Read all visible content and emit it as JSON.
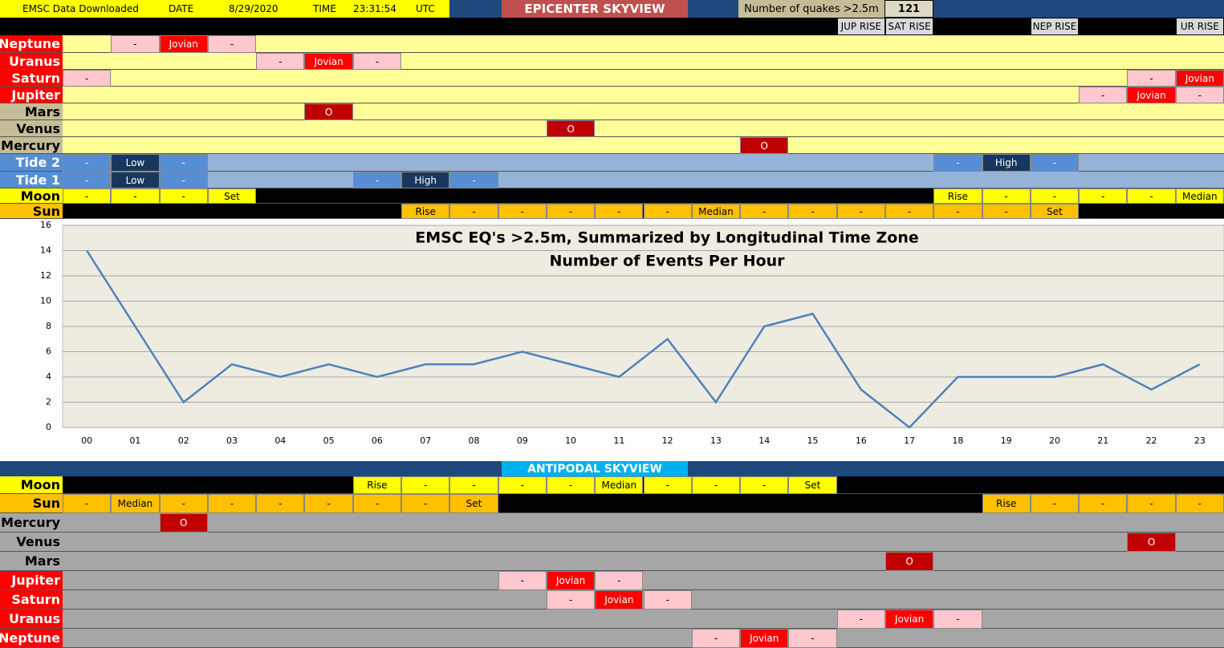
{
  "header": {
    "downloaded": "EMSC Data Downloaded",
    "date_label": "DATE",
    "date": "8/29/2020",
    "time_label": "TIME",
    "time": "23:31:54",
    "tz": "UTC",
    "title": "EPICENTER SKYVIEW",
    "quakes_label": "Number of quakes >2.5m",
    "quakes": 121
  },
  "rise_row": [
    null,
    null,
    null,
    null,
    null,
    null,
    null,
    null,
    null,
    null,
    null,
    null,
    null,
    null,
    null,
    null,
    "JUP RISE",
    "SAT RISE",
    null,
    null,
    "NEP RISE",
    null,
    null,
    "UR RISE"
  ],
  "epicenter": {
    "rows": [
      {
        "label": "Neptune",
        "label_color": "#ff0000",
        "bg": "#ffff99",
        "cells": [
          null,
          [
            "-",
            "#ffc7ce"
          ],
          [
            "Jovian",
            "#ff0000"
          ],
          [
            "-",
            "#ffc7ce"
          ],
          null,
          null,
          null,
          null,
          null,
          null,
          null,
          null,
          null,
          null,
          null,
          null,
          null,
          null,
          null,
          null,
          null,
          null,
          null,
          null
        ]
      },
      {
        "label": "Uranus",
        "label_color": "#ff0000",
        "bg": "#ffff99",
        "cells": [
          null,
          null,
          null,
          null,
          [
            "-",
            "#ffc7ce"
          ],
          [
            "Jovian",
            "#ff0000"
          ],
          [
            "-",
            "#ffc7ce"
          ],
          null,
          null,
          null,
          null,
          null,
          null,
          null,
          null,
          null,
          null,
          null,
          null,
          null,
          null,
          null,
          null,
          null
        ]
      },
      {
        "label": "Saturn",
        "label_color": "#ff0000",
        "bg": "#ffff99",
        "cells": [
          [
            "-",
            "#ffc7ce"
          ],
          null,
          null,
          null,
          null,
          null,
          null,
          null,
          null,
          null,
          null,
          null,
          null,
          null,
          null,
          null,
          null,
          null,
          null,
          null,
          null,
          null,
          [
            "-",
            "#ffc7ce"
          ],
          [
            "Jovian",
            "#ff0000"
          ]
        ]
      },
      {
        "label": "Jupiter",
        "label_color": "#ff0000",
        "bg": "#ffff99",
        "cells": [
          null,
          null,
          null,
          null,
          null,
          null,
          null,
          null,
          null,
          null,
          null,
          null,
          null,
          null,
          null,
          null,
          null,
          null,
          null,
          null,
          null,
          [
            "-",
            "#ffc7ce"
          ],
          [
            "Jovian",
            "#ff0000"
          ],
          [
            "-",
            "#ffc7ce"
          ]
        ]
      },
      {
        "label": "Mars",
        "label_color": "#c4bd97",
        "bg": "#ffff99",
        "cells": [
          null,
          null,
          null,
          null,
          null,
          [
            "O",
            "#c00000"
          ],
          null,
          null,
          null,
          null,
          null,
          null,
          null,
          null,
          null,
          null,
          null,
          null,
          null,
          null,
          null,
          null,
          null,
          null
        ]
      },
      {
        "label": "Venus",
        "label_color": "#c4bd97",
        "bg": "#ffff99",
        "cells": [
          null,
          null,
          null,
          null,
          null,
          null,
          null,
          null,
          null,
          null,
          [
            "O",
            "#c00000"
          ],
          null,
          null,
          null,
          null,
          null,
          null,
          null,
          null,
          null,
          null,
          null,
          null,
          null
        ]
      },
      {
        "label": "Mercury",
        "label_color": "#c4bd97",
        "bg": "#ffff99",
        "cells": [
          null,
          null,
          null,
          null,
          null,
          null,
          null,
          null,
          null,
          null,
          null,
          null,
          null,
          null,
          [
            "O",
            "#c00000"
          ],
          null,
          null,
          null,
          null,
          null,
          null,
          null,
          null,
          null
        ]
      },
      {
        "label": "Tide 2",
        "label_color": "#558ed5",
        "bg": "#95b3d7",
        "cells": [
          [
            "-",
            "#558ed5"
          ],
          [
            "Low",
            "#17375e"
          ],
          [
            "-",
            "#558ed5"
          ],
          null,
          null,
          null,
          null,
          null,
          null,
          null,
          null,
          null,
          null,
          null,
          null,
          null,
          null,
          null,
          [
            "-",
            "#558ed5"
          ],
          [
            "High",
            "#17375e"
          ],
          [
            "-",
            "#558ed5"
          ],
          null,
          null,
          null
        ]
      },
      {
        "label": "Tide 1",
        "label_color": "#558ed5",
        "bg": "#95b3d7",
        "cells": [
          [
            "-",
            "#558ed5"
          ],
          [
            "Low",
            "#17375e"
          ],
          [
            "-",
            "#558ed5"
          ],
          null,
          null,
          null,
          [
            "-",
            "#558ed5"
          ],
          [
            "High",
            "#17375e"
          ],
          [
            "-",
            "#558ed5"
          ],
          null,
          null,
          null,
          null,
          null,
          null,
          null,
          null,
          null,
          null,
          null,
          null,
          null,
          null,
          null
        ]
      },
      {
        "label": "Moon",
        "label_color": "#ffff00",
        "bg": "#000000",
        "cells": [
          [
            "-",
            "#ffff00"
          ],
          [
            "-",
            "#ffff00"
          ],
          [
            "-",
            "#ffff00"
          ],
          [
            "Set",
            "#ffff00"
          ],
          null,
          null,
          null,
          null,
          null,
          null,
          null,
          null,
          null,
          null,
          null,
          null,
          null,
          null,
          [
            "Rise",
            "#ffff00"
          ],
          [
            "-",
            "#ffff00"
          ],
          [
            "-",
            "#ffff00"
          ],
          [
            "-",
            "#ffff00"
          ],
          [
            "-",
            "#ffff00"
          ],
          [
            "Median",
            "#ffff00"
          ]
        ]
      },
      {
        "label": "Sun",
        "label_color": "#ffc000",
        "bg": "#000000",
        "cells": [
          null,
          null,
          null,
          null,
          null,
          null,
          null,
          [
            "Rise",
            "#ffc000"
          ],
          [
            "-",
            "#ffc000"
          ],
          [
            "-",
            "#ffc000"
          ],
          [
            "-",
            "#ffc000"
          ],
          [
            "-",
            "#ffc000"
          ],
          [
            "-",
            "#ffc000"
          ],
          [
            "Median",
            "#ffc000"
          ],
          [
            "-",
            "#ffc000"
          ],
          [
            "-",
            "#ffc000"
          ],
          [
            "-",
            "#ffc000"
          ],
          [
            "-",
            "#ffc000"
          ],
          [
            "-",
            "#ffc000"
          ],
          [
            "-",
            "#ffc000"
          ],
          [
            "Set",
            "#ffc000"
          ],
          null,
          null,
          null
        ]
      }
    ]
  },
  "chart_data": {
    "type": "line",
    "title": "EMSC EQ's >2.5m, Summarized by Longitudinal Time Zone",
    "subtitle": "Number of Events Per Hour",
    "categories": [
      "00",
      "01",
      "02",
      "03",
      "04",
      "05",
      "06",
      "07",
      "08",
      "09",
      "10",
      "11",
      "12",
      "13",
      "14",
      "15",
      "16",
      "17",
      "18",
      "19",
      "20",
      "21",
      "22",
      "23"
    ],
    "values": [
      14,
      8,
      2,
      5,
      4,
      5,
      4,
      5,
      5,
      6,
      5,
      4,
      7,
      2,
      8,
      9,
      3,
      0,
      4,
      4,
      4,
      5,
      3,
      5
    ],
    "color": "#4f81bd",
    "ylim": [
      0,
      16
    ],
    "yticks": [
      0,
      2,
      4,
      6,
      8,
      10,
      12,
      14,
      16
    ],
    "grid": true
  },
  "antipodal": {
    "title": "ANTIPODAL SKYVIEW",
    "rows": [
      {
        "label": "Moon",
        "label_color": "#ffff00",
        "bg": "#000000",
        "cells": [
          null,
          null,
          null,
          null,
          null,
          null,
          [
            "Rise",
            "#ffff00"
          ],
          [
            "-",
            "#ffff00"
          ],
          [
            "-",
            "#ffff00"
          ],
          [
            "-",
            "#ffff00"
          ],
          [
            "-",
            "#ffff00"
          ],
          [
            "Median",
            "#ffff00"
          ],
          [
            "-",
            "#ffff00"
          ],
          [
            "-",
            "#ffff00"
          ],
          [
            "-",
            "#ffff00"
          ],
          [
            "Set",
            "#ffff00"
          ],
          null,
          null,
          null,
          null,
          null,
          null,
          null,
          null
        ]
      },
      {
        "label": "Sun",
        "label_color": "#ffc000",
        "bg": "#000000",
        "cells": [
          [
            "-",
            "#ffc000"
          ],
          [
            "Median",
            "#ffc000"
          ],
          [
            "-",
            "#ffc000"
          ],
          [
            "-",
            "#ffc000"
          ],
          [
            "-",
            "#ffc000"
          ],
          [
            "-",
            "#ffc000"
          ],
          [
            "-",
            "#ffc000"
          ],
          [
            "-",
            "#ffc000"
          ],
          [
            "Set",
            "#ffc000"
          ],
          null,
          null,
          null,
          null,
          null,
          null,
          null,
          null,
          null,
          null,
          [
            "Rise",
            "#ffc000"
          ],
          [
            "-",
            "#ffc000"
          ],
          [
            "-",
            "#ffc000"
          ],
          [
            "-",
            "#ffc000"
          ],
          [
            "-",
            "#ffc000"
          ]
        ]
      },
      {
        "label": "Mercury",
        "label_color": "#a6a6a6",
        "bg": "#a6a6a6",
        "cells": [
          null,
          null,
          [
            "O",
            "#c00000"
          ],
          null,
          null,
          null,
          null,
          null,
          null,
          null,
          null,
          null,
          null,
          null,
          null,
          null,
          null,
          null,
          null,
          null,
          null,
          null,
          null,
          null
        ]
      },
      {
        "label": "Venus",
        "label_color": "#a6a6a6",
        "bg": "#a6a6a6",
        "cells": [
          null,
          null,
          null,
          null,
          null,
          null,
          null,
          null,
          null,
          null,
          null,
          null,
          null,
          null,
          null,
          null,
          null,
          null,
          null,
          null,
          null,
          null,
          [
            "O",
            "#c00000"
          ],
          null
        ]
      },
      {
        "label": "Mars",
        "label_color": "#a6a6a6",
        "bg": "#a6a6a6",
        "cells": [
          null,
          null,
          null,
          null,
          null,
          null,
          null,
          null,
          null,
          null,
          null,
          null,
          null,
          null,
          null,
          null,
          null,
          [
            "O",
            "#c00000"
          ],
          null,
          null,
          null,
          null,
          null,
          null
        ]
      },
      {
        "label": "Jupiter",
        "label_color": "#ff0000",
        "bg": "#a6a6a6",
        "cells": [
          null,
          null,
          null,
          null,
          null,
          null,
          null,
          null,
          null,
          [
            "-",
            "#ffc7ce"
          ],
          [
            "Jovian",
            "#ff0000"
          ],
          [
            "-",
            "#ffc7ce"
          ],
          null,
          null,
          null,
          null,
          null,
          null,
          null,
          null,
          null,
          null,
          null,
          null
        ]
      },
      {
        "label": "Saturn",
        "label_color": "#ff0000",
        "bg": "#a6a6a6",
        "cells": [
          null,
          null,
          null,
          null,
          null,
          null,
          null,
          null,
          null,
          null,
          [
            "-",
            "#ffc7ce"
          ],
          [
            "Jovian",
            "#ff0000"
          ],
          [
            "-",
            "#ffc7ce"
          ],
          null,
          null,
          null,
          null,
          null,
          null,
          null,
          null,
          null,
          null,
          null
        ]
      },
      {
        "label": "Uranus",
        "label_color": "#ff0000",
        "bg": "#a6a6a6",
        "cells": [
          null,
          null,
          null,
          null,
          null,
          null,
          null,
          null,
          null,
          null,
          null,
          null,
          null,
          null,
          null,
          null,
          [
            "-",
            "#ffc7ce"
          ],
          [
            "Jovian",
            "#ff0000"
          ],
          [
            "-",
            "#ffc7ce"
          ],
          null,
          null,
          null,
          null,
          null
        ]
      },
      {
        "label": "Neptune",
        "label_color": "#ff0000",
        "bg": "#a6a6a6",
        "cells": [
          null,
          null,
          null,
          null,
          null,
          null,
          null,
          null,
          null,
          null,
          null,
          null,
          null,
          [
            "-",
            "#ffc7ce"
          ],
          [
            "Jovian",
            "#ff0000"
          ],
          [
            "-",
            "#ffc7ce"
          ],
          null,
          null,
          null,
          null,
          null,
          null,
          null,
          null
        ]
      }
    ]
  }
}
